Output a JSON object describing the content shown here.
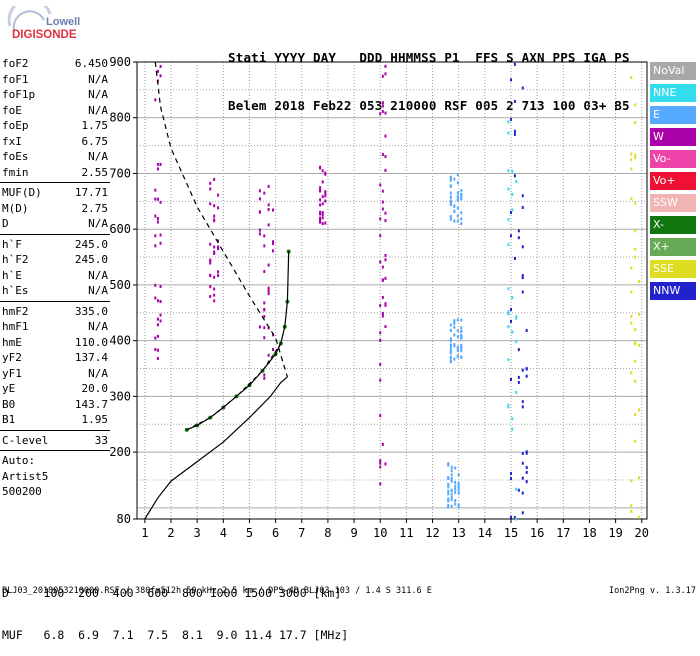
{
  "logo": {
    "line1": "Lowell",
    "line2": "DIGISONDE"
  },
  "header": {
    "line1": "Stati YYYY DAY   DDD HHMMSS P1  FFS S AXN PPS IGA PS",
    "line2": "Belem 2018 Feb22 053 210000 RSF 005 2 713 100 03+ B5"
  },
  "params_groups": [
    [
      {
        "k": "foF2",
        "v": "6.450"
      },
      {
        "k": "foF1",
        "v": "N/A"
      },
      {
        "k": "foF1p",
        "v": "N/A"
      },
      {
        "k": "foE",
        "v": "N/A"
      },
      {
        "k": "foEp",
        "v": "1.75"
      },
      {
        "k": "fxI",
        "v": "6.75"
      },
      {
        "k": "foEs",
        "v": "N/A"
      },
      {
        "k": "fmin",
        "v": "2.55"
      }
    ],
    [
      {
        "k": "MUF(D)",
        "v": "17.71"
      },
      {
        "k": "M(D)",
        "v": "2.75"
      },
      {
        "k": "D",
        "v": "N/A"
      }
    ],
    [
      {
        "k": "h`F",
        "v": "245.0"
      },
      {
        "k": "h`F2",
        "v": "245.0"
      },
      {
        "k": "h`E",
        "v": "N/A"
      },
      {
        "k": "h`Es",
        "v": "N/A"
      }
    ],
    [
      {
        "k": "hmF2",
        "v": "335.0"
      },
      {
        "k": "hmF1",
        "v": "N/A"
      },
      {
        "k": "hmE",
        "v": "110.0"
      },
      {
        "k": "yF2",
        "v": "137.4"
      },
      {
        "k": "yF1",
        "v": "N/A"
      },
      {
        "k": "yE",
        "v": "20.0"
      },
      {
        "k": "B0",
        "v": "143.7"
      },
      {
        "k": "B1",
        "v": "1.95"
      }
    ],
    [
      {
        "k": "C-level",
        "v": "33"
      }
    ]
  ],
  "auto": {
    "line1": "Auto:",
    "line2": "Artist5",
    "line3": "500200"
  },
  "legend": [
    {
      "label": "NoVal",
      "color": "#a8a8a8"
    },
    {
      "label": "NNE",
      "color": "#33ddee"
    },
    {
      "label": "E",
      "color": "#55aaff"
    },
    {
      "label": "W",
      "color": "#aa00aa"
    },
    {
      "label": "Vo-",
      "color": "#ee44aa"
    },
    {
      "label": "Vo+",
      "color": "#ee1133"
    },
    {
      "label": "SSW",
      "color": "#f2b3b3"
    },
    {
      "label": "X-",
      "color": "#117711"
    },
    {
      "label": "X+",
      "color": "#66aa55"
    },
    {
      "label": "SSE",
      "color": "#dddd22"
    },
    {
      "label": "NNW",
      "color": "#2222cc"
    }
  ],
  "dmuf": {
    "line1": "D     100  200  400  600  800 1000 1500 3000 [km]",
    "line2": "MUF   6.8  6.9  7.1  7.5  8.1  9.0 11.4 17.7 [MHz]"
  },
  "footer": "BLJ03_2018053210000.RSF / 380fx512h 50 kHz 2.5 km / DPS-4D BLJ03 103 / 1.4 S 311.6 E",
  "version": "Ion2Png v. 1.3.17",
  "chart_data": {
    "type": "scatter",
    "x_ticks": [
      1,
      2,
      3,
      4,
      5,
      6,
      7,
      8,
      9,
      10,
      11,
      12,
      13,
      14,
      15,
      16,
      17,
      18,
      19,
      20
    ],
    "y_ticks": [
      80,
      200,
      300,
      400,
      500,
      600,
      700,
      800,
      900
    ],
    "xlim": [
      0.7,
      20.2
    ],
    "ylim": [
      80,
      900
    ],
    "grid": true,
    "legend_position": "right",
    "profile_solid": [
      [
        1.0,
        80
      ],
      [
        1.5,
        118
      ],
      [
        2.0,
        148
      ],
      [
        3.0,
        183
      ],
      [
        4.0,
        218
      ],
      [
        5.0,
        262
      ],
      [
        5.8,
        300
      ],
      [
        6.2,
        325
      ],
      [
        6.45,
        335
      ]
    ],
    "trace_solid": [
      [
        2.6,
        240
      ],
      [
        3.0,
        248
      ],
      [
        3.5,
        262
      ],
      [
        4.0,
        280
      ],
      [
        4.5,
        300
      ],
      [
        5.0,
        320
      ],
      [
        5.5,
        346
      ],
      [
        6.0,
        376
      ],
      [
        6.2,
        395
      ],
      [
        6.35,
        425
      ],
      [
        6.45,
        470
      ],
      [
        6.5,
        560
      ]
    ],
    "profile_dashed": [
      [
        1.4,
        900
      ],
      [
        1.6,
        820
      ],
      [
        2.0,
        745
      ],
      [
        3.0,
        640
      ],
      [
        4.0,
        560
      ],
      [
        5.0,
        480
      ],
      [
        6.0,
        405
      ],
      [
        6.45,
        335
      ]
    ],
    "trace_dashed": [
      [
        2.6,
        240
      ],
      [
        3.5,
        262
      ],
      [
        4.5,
        300
      ],
      [
        5.5,
        346
      ],
      [
        6.2,
        395
      ]
    ],
    "clusters": [
      {
        "series": "W",
        "x": [
          1.4,
          1.6
        ],
        "y": [
          340,
          900
        ]
      },
      {
        "series": "W",
        "x": [
          3.5,
          3.8
        ],
        "y": [
          460,
          700
        ]
      },
      {
        "series": "W",
        "x": [
          5.4,
          5.9
        ],
        "y": [
          330,
          680
        ]
      },
      {
        "series": "W",
        "x": [
          7.7,
          7.9
        ],
        "y": [
          610,
          730
        ]
      },
      {
        "series": "W",
        "x": [
          10.0,
          10.2
        ],
        "y": [
          120,
          900
        ]
      },
      {
        "series": "E",
        "x": [
          12.6,
          13.0
        ],
        "y": [
          100,
          180
        ]
      },
      {
        "series": "E",
        "x": [
          12.7,
          13.1
        ],
        "y": [
          360,
          440
        ]
      },
      {
        "series": "E",
        "x": [
          12.7,
          13.1
        ],
        "y": [
          610,
          700
        ]
      },
      {
        "series": "NNW",
        "x": [
          15.0,
          15.6
        ],
        "y": [
          80,
          900
        ]
      },
      {
        "series": "NNE",
        "x": [
          14.9,
          15.2
        ],
        "y": [
          80,
          880
        ]
      },
      {
        "series": "SSE",
        "x": [
          19.6,
          19.9
        ],
        "y": [
          80,
          900
        ]
      }
    ]
  }
}
